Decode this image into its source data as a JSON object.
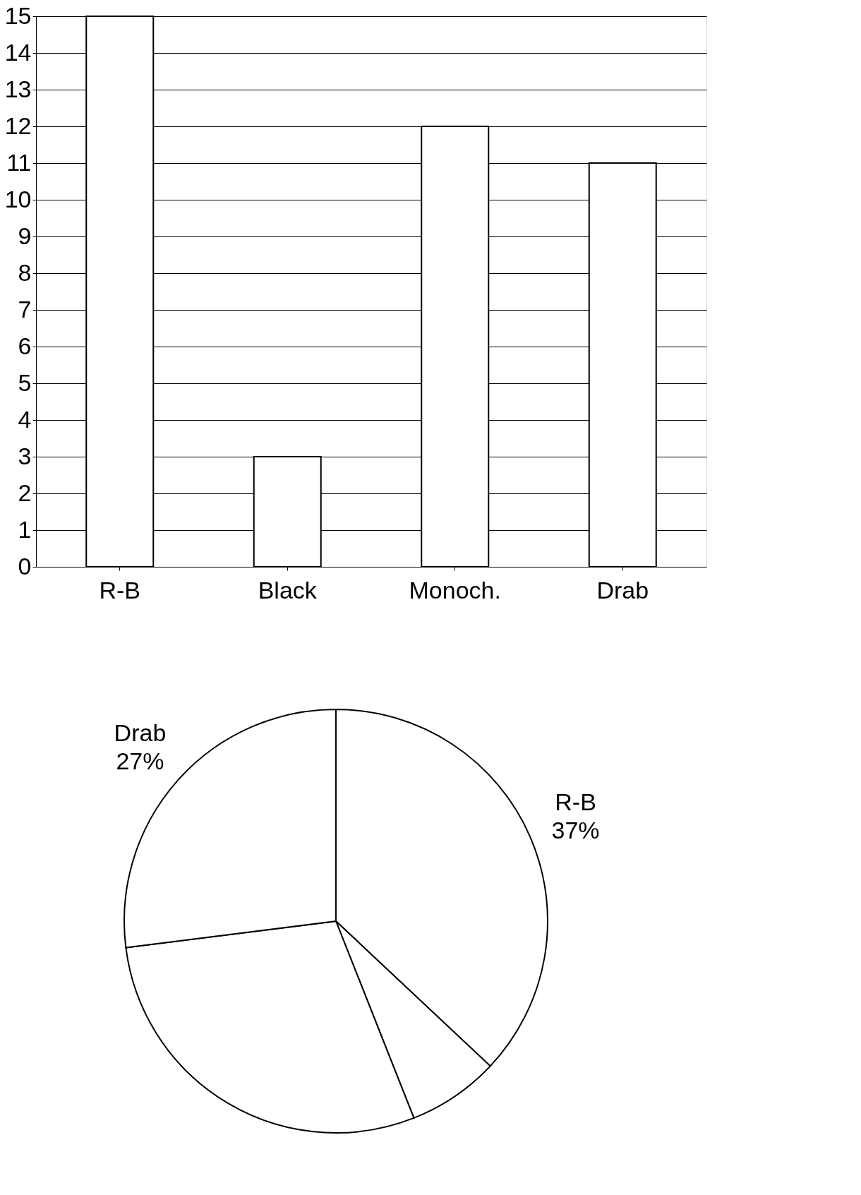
{
  "chart_data": [
    {
      "type": "bar",
      "categories": [
        "R-B",
        "Black",
        "Monoch.",
        "Drab"
      ],
      "values": [
        15,
        3,
        12,
        11
      ],
      "color": "#ffffff",
      "ylim": [
        0,
        15
      ],
      "yticks": [
        0,
        1,
        2,
        3,
        4,
        5,
        6,
        7,
        8,
        9,
        10,
        11,
        12,
        13,
        14,
        15
      ],
      "grid": "y"
    },
    {
      "type": "pie",
      "categories": [
        "R-B",
        null,
        null,
        "Drab"
      ],
      "values": [
        37,
        7,
        29,
        27
      ],
      "colors": [
        "#ffffff",
        "#ffffff",
        "#ffffff",
        "#ffffff"
      ],
      "value_labels": [
        "37%",
        null,
        null,
        "27%"
      ]
    }
  ]
}
